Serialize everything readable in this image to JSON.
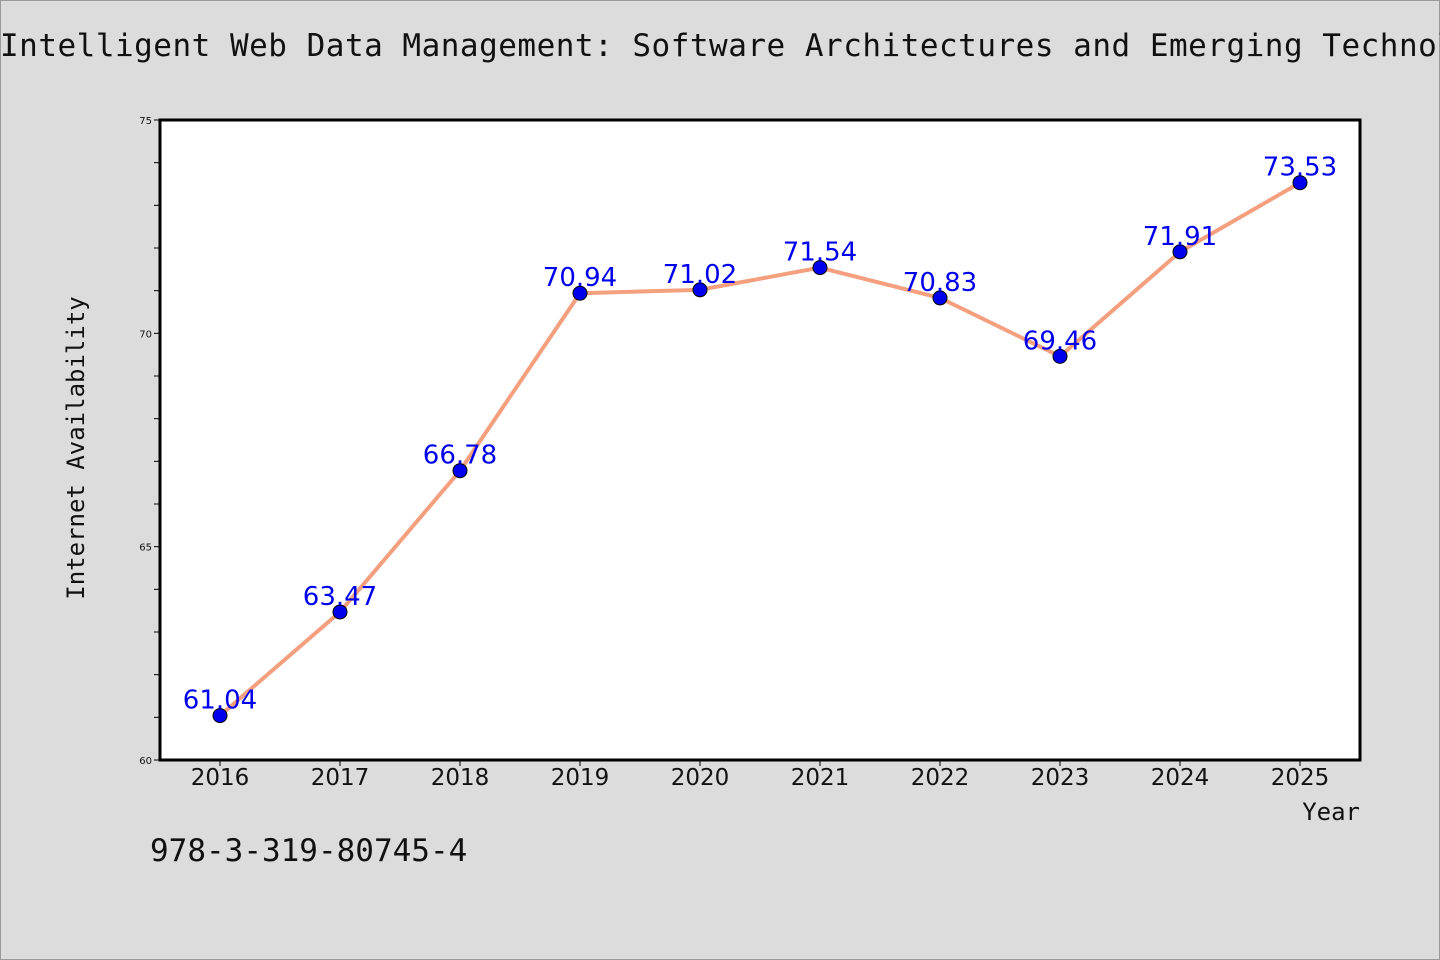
{
  "chart_data": {
    "type": "line",
    "title": "Intelligent Web Data Management: Software Architectures and Emerging Technologies",
    "xlabel": "Year",
    "ylabel": "Internet Availability",
    "categories": [
      "2016",
      "2017",
      "2018",
      "2019",
      "2020",
      "2021",
      "2022",
      "2023",
      "2024",
      "2025"
    ],
    "series": [
      {
        "values": [
          61.04,
          63.47,
          66.78,
          70.94,
          71.02,
          71.54,
          70.83,
          69.46,
          71.91,
          73.53
        ]
      }
    ],
    "ylim": [
      60,
      75
    ],
    "yticks": [
      60,
      65,
      70,
      75
    ],
    "grid": false,
    "legend": "none",
    "line_color": "#f4a07e",
    "marker_color": "#0000ee",
    "label_color": "#0000ee"
  },
  "footer": {
    "isbn": "978-3-319-80745-4"
  }
}
